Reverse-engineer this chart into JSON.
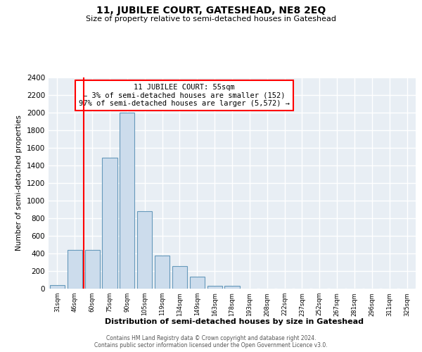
{
  "title": "11, JUBILEE COURT, GATESHEAD, NE8 2EQ",
  "subtitle": "Size of property relative to semi-detached houses in Gateshead",
  "xlabel": "Distribution of semi-detached houses by size in Gateshead",
  "ylabel": "Number of semi-detached properties",
  "bin_labels": [
    "31sqm",
    "46sqm",
    "60sqm",
    "75sqm",
    "90sqm",
    "105sqm",
    "119sqm",
    "134sqm",
    "149sqm",
    "163sqm",
    "178sqm",
    "193sqm",
    "208sqm",
    "222sqm",
    "237sqm",
    "252sqm",
    "267sqm",
    "281sqm",
    "296sqm",
    "311sqm",
    "325sqm"
  ],
  "bar_heights": [
    40,
    440,
    440,
    1490,
    2000,
    880,
    375,
    260,
    135,
    35,
    35,
    0,
    0,
    0,
    0,
    0,
    0,
    0,
    0,
    0,
    0
  ],
  "bar_color": "#ccdcec",
  "bar_edge_color": "#6699bb",
  "vline_x": 2,
  "vline_color": "red",
  "annotation_title": "11 JUBILEE COURT: 55sqm",
  "annotation_line1": "← 3% of semi-detached houses are smaller (152)",
  "annotation_line2": "97% of semi-detached houses are larger (5,572) →",
  "annotation_box_color": "white",
  "annotation_box_edge": "red",
  "ylim": [
    0,
    2400
  ],
  "yticks": [
    0,
    200,
    400,
    600,
    800,
    1000,
    1200,
    1400,
    1600,
    1800,
    2000,
    2200,
    2400
  ],
  "footer1": "Contains HM Land Registry data © Crown copyright and database right 2024.",
  "footer2": "Contains public sector information licensed under the Open Government Licence v3.0.",
  "bg_color": "#ffffff",
  "plot_bg_color": "#e8eef4",
  "grid_color": "#ffffff"
}
